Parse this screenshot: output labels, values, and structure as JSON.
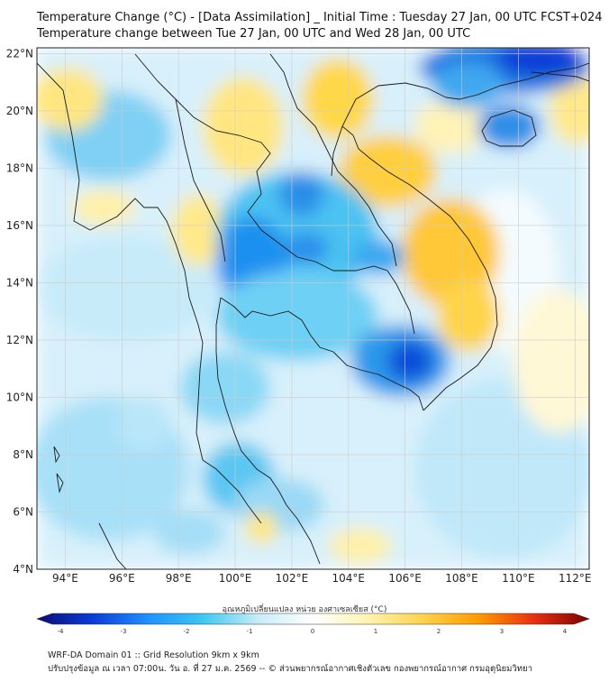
{
  "header": {
    "title_line1": "Temperature Change (°C) - [Data Assimilation] _ Initial Time : Tuesday 27 Jan, 00 UTC FCST+024",
    "title_line2": "Temperature change between Tue 27 Jan, 00 UTC and Wed 28 Jan, 00 UTC"
  },
  "map": {
    "lat_labels": [
      "22°N",
      "20°N",
      "18°N",
      "16°N",
      "14°N",
      "12°N",
      "10°N",
      "8°N",
      "6°N",
      "4°N"
    ],
    "lon_labels": [
      "94°E",
      "96°E",
      "98°E",
      "100°E",
      "102°E",
      "104°E",
      "106°E",
      "108°E",
      "110°E",
      "112°E"
    ],
    "lat_range": [
      4,
      22.2
    ],
    "lon_range": [
      93,
      112.5
    ],
    "grid": true
  },
  "colorbar": {
    "label": "อุณหภูมิเปลี่ยนแปลง หน่วย องศาเซลเซียส (°C)",
    "ticks": [
      "-4",
      "-3",
      "-2",
      "-1",
      "0",
      "1",
      "2",
      "3",
      "4"
    ],
    "range": [
      -4,
      4
    ],
    "colors": [
      "#0a0a78",
      "#0b3bd6",
      "#1e90ff",
      "#3cc8f0",
      "#c8ecf8",
      "#ffffff",
      "#fff4b0",
      "#ffd24a",
      "#ff9a00",
      "#e83010",
      "#7a0000"
    ]
  },
  "footer": {
    "line1": "WRF-DA Domain 01 :: Grid Resolution 9km x 9km",
    "line2": "ปรับปรุงข้อมูล ณ เวลา 07:00น. วัน อ. ที่ 27 ม.ค. 2569 -- © ส่วนพยากรณ์อากาศเชิงตัวเลข กองพยากรณ์อากาศ กรมอุตุนิยมวิทยา"
  }
}
